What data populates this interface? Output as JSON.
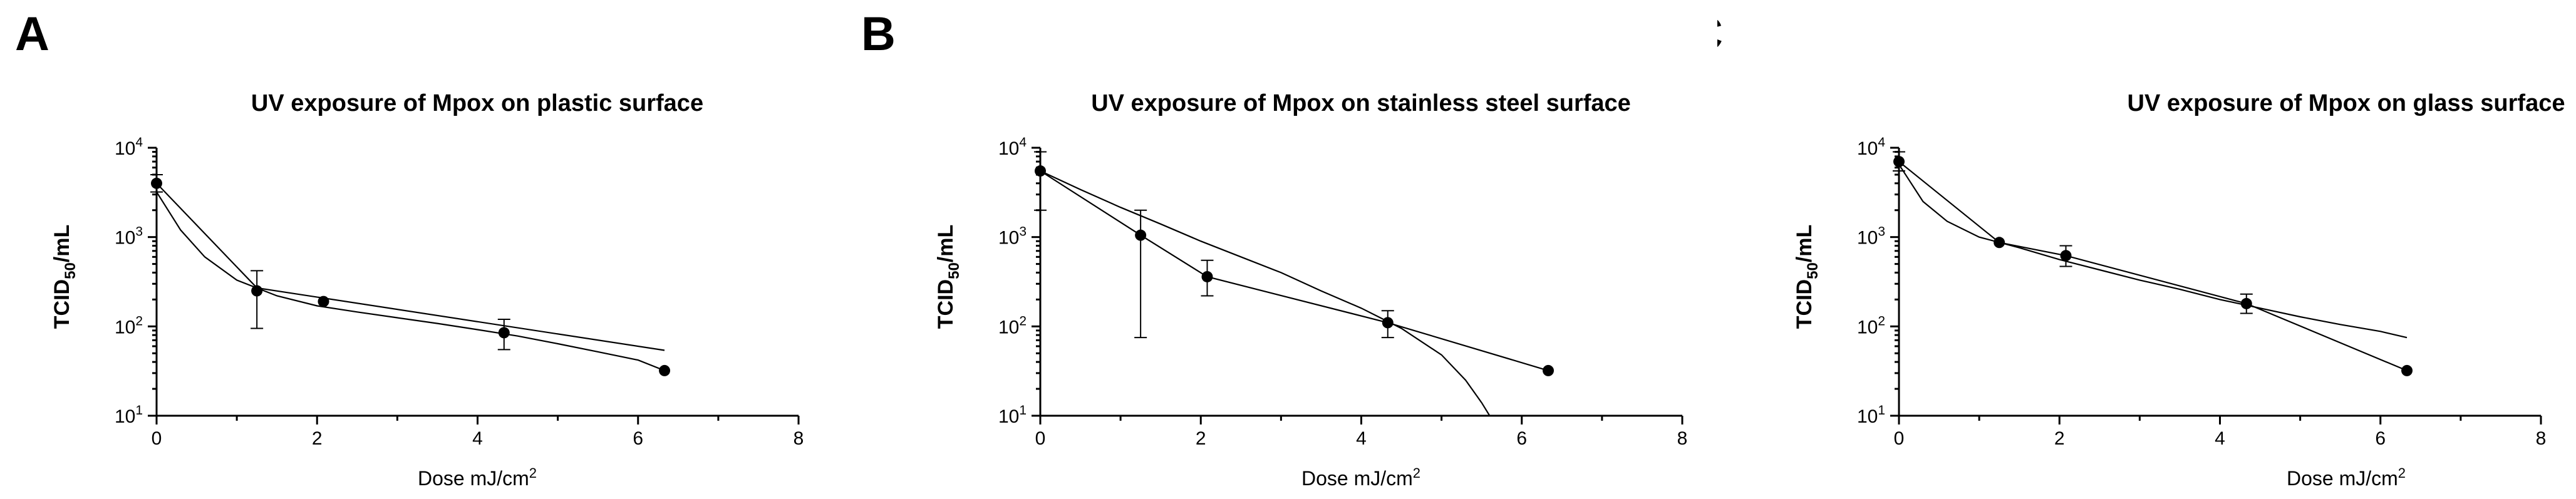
{
  "chart_data": [
    {
      "type": "scatter",
      "panel_label": "A",
      "title": "UV exposure of Mpox on plastic surface",
      "xlabel": "Dose mJ/cm",
      "xlabel_sup": "2",
      "ylabel": "TCID",
      "ylabel_sub": "50",
      "ylabel_tail": "/mL",
      "xlim": [
        0,
        8
      ],
      "ylim": [
        10,
        10000
      ],
      "yscale": "log",
      "x_ticks": [
        "0",
        "2",
        "4",
        "6",
        "8"
      ],
      "y_ticks": [
        {
          "base": "10",
          "exp": "1"
        },
        {
          "base": "10",
          "exp": "2"
        },
        {
          "base": "10",
          "exp": "3"
        },
        {
          "base": "10",
          "exp": "4"
        }
      ],
      "points": [
        {
          "x": 0,
          "y": 4000,
          "lo": 3200,
          "hi": 5000
        },
        {
          "x": 1.25,
          "y": 250,
          "lo": 95,
          "hi": 420
        },
        {
          "x": 2.08,
          "y": 190
        },
        {
          "x": 4.33,
          "y": 85,
          "lo": 55,
          "hi": 120
        },
        {
          "x": 6.33,
          "y": 32
        }
      ],
      "linear_fit": [
        [
          0,
          4000
        ],
        [
          1.25,
          270
        ],
        [
          6.33,
          54
        ]
      ],
      "curve_fit": [
        [
          0,
          3200
        ],
        [
          0.3,
          1200
        ],
        [
          0.6,
          600
        ],
        [
          1,
          330
        ],
        [
          1.5,
          220
        ],
        [
          2,
          170
        ],
        [
          2.5,
          145
        ],
        [
          3,
          125
        ],
        [
          3.5,
          108
        ],
        [
          4,
          92
        ],
        [
          4.5,
          78
        ],
        [
          5,
          64
        ],
        [
          5.5,
          52
        ],
        [
          6,
          42
        ],
        [
          6.33,
          32
        ]
      ],
      "grid": false
    },
    {
      "type": "scatter",
      "panel_label": "B",
      "title": "UV exposure of Mpox on stainless steel surface",
      "xlabel": "Dose mJ/cm",
      "xlabel_sup": "2",
      "ylabel": "TCID",
      "ylabel_sub": "50",
      "ylabel_tail": "/mL",
      "xlim": [
        0,
        8
      ],
      "ylim": [
        10,
        10000
      ],
      "yscale": "log",
      "x_ticks": [
        "0",
        "2",
        "4",
        "6",
        "8"
      ],
      "y_ticks": [
        {
          "base": "10",
          "exp": "1"
        },
        {
          "base": "10",
          "exp": "2"
        },
        {
          "base": "10",
          "exp": "3"
        },
        {
          "base": "10",
          "exp": "4"
        }
      ],
      "points": [
        {
          "x": 0,
          "y": 5500,
          "lo": 2000,
          "hi": 9000
        },
        {
          "x": 1.25,
          "y": 1050,
          "lo": 75,
          "hi": 2000
        },
        {
          "x": 2.08,
          "y": 360,
          "lo": 220,
          "hi": 550
        },
        {
          "x": 4.33,
          "y": 110,
          "lo": 75,
          "hi": 150
        },
        {
          "x": 6.33,
          "y": 32
        }
      ],
      "linear_fit": [
        [
          0,
          5500
        ],
        [
          1.25,
          1050
        ],
        [
          2.08,
          360
        ],
        [
          4.33,
          110
        ],
        [
          6.33,
          32
        ]
      ],
      "curve_fit": [
        [
          0,
          5500
        ],
        [
          0.5,
          3400
        ],
        [
          1,
          2150
        ],
        [
          1.5,
          1400
        ],
        [
          2,
          900
        ],
        [
          2.5,
          600
        ],
        [
          3,
          400
        ],
        [
          3.5,
          250
        ],
        [
          4,
          160
        ],
        [
          4.5,
          95
        ],
        [
          5,
          48
        ],
        [
          5.3,
          25
        ],
        [
          5.5,
          14
        ],
        [
          5.6,
          10
        ]
      ],
      "grid": false
    },
    {
      "type": "scatter",
      "panel_label": "C",
      "title": "UV exposure of Mpox on glass surface",
      "xlabel": "Dose mJ/cm",
      "xlabel_sup": "2",
      "ylabel": "TCID",
      "ylabel_sub": "50",
      "ylabel_tail": "/mL",
      "xlim": [
        0,
        8
      ],
      "ylim": [
        10,
        10000
      ],
      "yscale": "log",
      "x_ticks": [
        "0",
        "2",
        "4",
        "6",
        "8"
      ],
      "y_ticks": [
        {
          "base": "10",
          "exp": "1"
        },
        {
          "base": "10",
          "exp": "2"
        },
        {
          "base": "10",
          "exp": "3"
        },
        {
          "base": "10",
          "exp": "4"
        }
      ],
      "points": [
        {
          "x": 0,
          "y": 7000,
          "lo": 5500,
          "hi": 9000
        },
        {
          "x": 1.25,
          "y": 870
        },
        {
          "x": 2.08,
          "y": 620,
          "lo": 470,
          "hi": 800
        },
        {
          "x": 4.33,
          "y": 180,
          "lo": 140,
          "hi": 230
        },
        {
          "x": 6.33,
          "y": 32
        }
      ],
      "linear_fit": [
        [
          0,
          7000
        ],
        [
          1.25,
          870
        ],
        [
          2.08,
          620
        ],
        [
          4.33,
          180
        ],
        [
          6.33,
          32
        ]
      ],
      "curve_fit": [
        [
          0,
          6500
        ],
        [
          0.3,
          2500
        ],
        [
          0.6,
          1500
        ],
        [
          1,
          1000
        ],
        [
          1.5,
          760
        ],
        [
          2,
          560
        ],
        [
          2.5,
          430
        ],
        [
          3,
          330
        ],
        [
          3.5,
          260
        ],
        [
          4,
          200
        ],
        [
          4.5,
          160
        ],
        [
          5,
          128
        ],
        [
          5.5,
          105
        ],
        [
          6,
          88
        ],
        [
          6.33,
          75
        ]
      ],
      "grid": false
    }
  ]
}
